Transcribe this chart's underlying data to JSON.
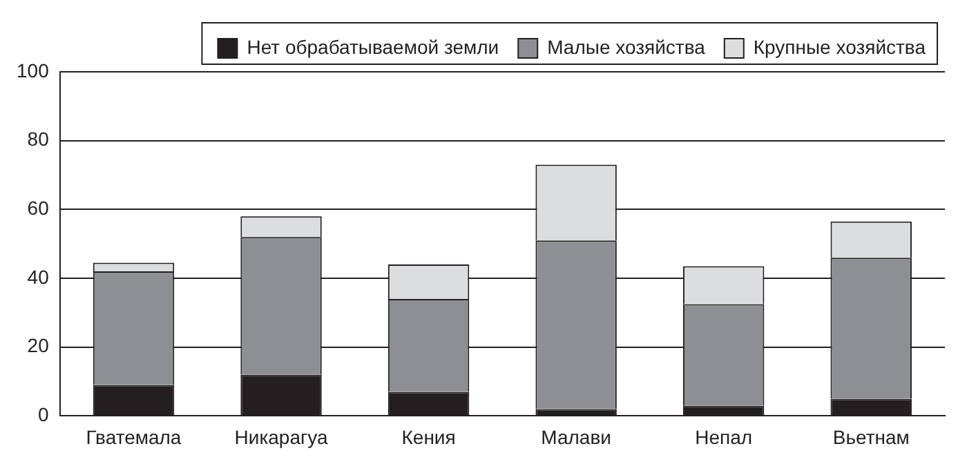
{
  "chart_data": {
    "type": "bar",
    "stacked": true,
    "categories": [
      "Гватемала",
      "Никарагуа",
      "Кения",
      "Малави",
      "Непал",
      "Вьетнам"
    ],
    "series": [
      {
        "name": "Нет обрабатываемой земли",
        "color": "#231f20",
        "values": [
          9,
          12,
          7,
          2,
          3,
          5
        ]
      },
      {
        "name": "Малые хозяйства",
        "color": "#8e8f92",
        "values": [
          33,
          40,
          27,
          49,
          29.5,
          41
        ]
      },
      {
        "name": "Крупные хозяйства",
        "color": "#dcddde",
        "values": [
          2.5,
          6,
          10,
          22,
          11,
          10.5
        ]
      }
    ],
    "ylim": [
      0,
      100
    ],
    "yticks": [
      0,
      20,
      40,
      60,
      80,
      100
    ],
    "grid": "y",
    "legend": "top right"
  }
}
